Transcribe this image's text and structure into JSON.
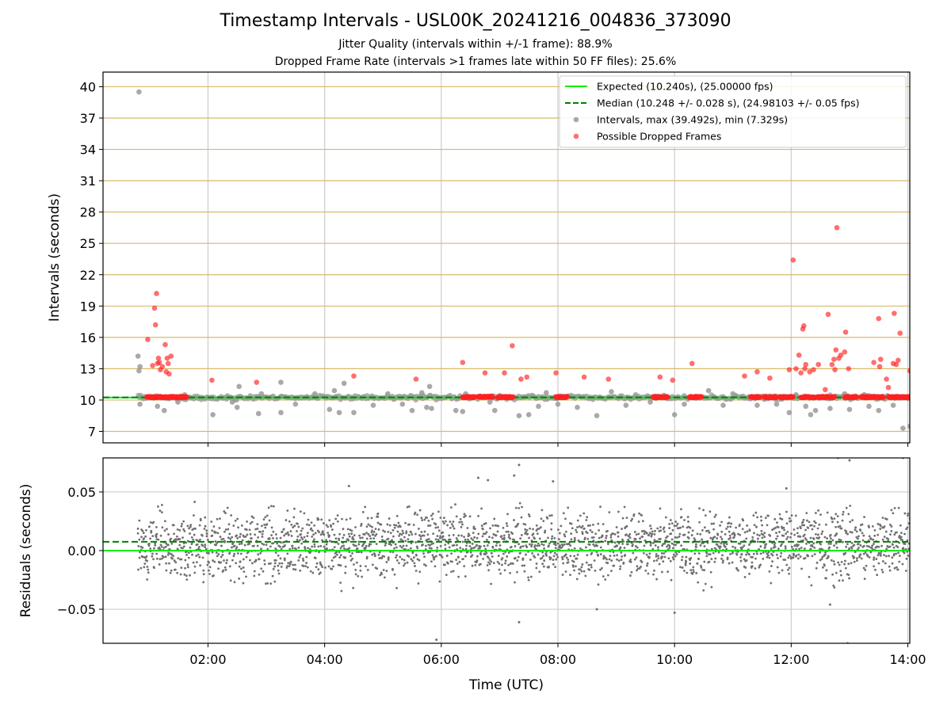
{
  "title": "Timestamp Intervals - USL00K_20241216_004836_373090",
  "subtitle_lines": [
    "Jitter Quality (intervals within +/-1 frame): 88.9%",
    "Dropped Frame Rate (intervals >1 frames late within 50 FF files): 25.6%"
  ],
  "colors": {
    "expected": "#00ee00",
    "median": "#008000",
    "intervals": "#9a9a9a",
    "dropped": "#ff2020",
    "residuals": "#707070",
    "hgrid_top": "#d9b96a",
    "grid": "#cccccc"
  },
  "chart_data": [
    {
      "type": "scatter",
      "panel": "intervals",
      "ylabel": "Intervals (seconds)",
      "xlim": [
        "00:12",
        "14:02"
      ],
      "ylim": [
        5.9,
        41.4
      ],
      "y_ticks": [
        7,
        10,
        13,
        16,
        19,
        22,
        25,
        28,
        31,
        34,
        37,
        40
      ],
      "x_ticks": [
        "02:00",
        "04:00",
        "06:00",
        "08:00",
        "10:00",
        "12:00",
        "14:00"
      ],
      "grid": true,
      "legend_position": "top-right",
      "legend": [
        "Expected (10.240s), (25.00000 fps)",
        "Median (10.248 +/- 0.028 s), (24.98103 +/- 0.05 fps)",
        "Intervals, max (39.492s), min (7.329s)",
        "Possible Dropped Frames"
      ],
      "expected_interval": 10.24,
      "median_interval": 10.248,
      "series": [
        {
          "name": "Intervals, max (39.492s), min (7.329s)",
          "points": [
            [
              "00:49",
              39.5
            ],
            [
              "00:48",
              14.2
            ],
            [
              "00:50",
              13.2
            ],
            [
              "00:49",
              12.8
            ],
            [
              "00:50",
              9.6
            ],
            [
              "01:08",
              9.4
            ],
            [
              "01:15",
              9.0
            ],
            [
              "01:29",
              9.8
            ],
            [
              "01:36",
              10.5
            ],
            [
              "02:05",
              8.6
            ],
            [
              "02:20",
              10.4
            ],
            [
              "02:25",
              9.8
            ],
            [
              "02:30",
              9.3
            ],
            [
              "02:32",
              11.3
            ],
            [
              "02:52",
              8.7
            ],
            [
              "02:55",
              10.6
            ],
            [
              "03:15",
              8.8
            ],
            [
              "03:15",
              11.7
            ],
            [
              "03:30",
              9.6
            ],
            [
              "03:50",
              10.6
            ],
            [
              "04:05",
              9.1
            ],
            [
              "04:10",
              10.9
            ],
            [
              "04:15",
              8.8
            ],
            [
              "04:20",
              11.6
            ],
            [
              "04:30",
              8.8
            ],
            [
              "04:50",
              9.5
            ],
            [
              "05:05",
              10.6
            ],
            [
              "05:20",
              9.6
            ],
            [
              "05:30",
              9.0
            ],
            [
              "05:40",
              10.7
            ],
            [
              "05:45",
              9.3
            ],
            [
              "05:48",
              11.3
            ],
            [
              "05:50",
              9.2
            ],
            [
              "06:15",
              9.0
            ],
            [
              "06:22",
              8.9
            ],
            [
              "06:25",
              10.6
            ],
            [
              "06:50",
              9.8
            ],
            [
              "06:55",
              9.0
            ],
            [
              "07:20",
              8.5
            ],
            [
              "07:30",
              8.6
            ],
            [
              "07:40",
              9.4
            ],
            [
              "07:48",
              10.7
            ],
            [
              "08:00",
              9.6
            ],
            [
              "08:20",
              9.3
            ],
            [
              "08:40",
              8.5
            ],
            [
              "08:55",
              10.8
            ],
            [
              "09:10",
              9.5
            ],
            [
              "09:20",
              10.5
            ],
            [
              "09:35",
              9.8
            ],
            [
              "09:50",
              10.4
            ],
            [
              "10:00",
              8.6
            ],
            [
              "10:10",
              9.6
            ],
            [
              "10:35",
              10.9
            ],
            [
              "10:50",
              9.5
            ],
            [
              "11:00",
              10.6
            ],
            [
              "11:25",
              9.5
            ],
            [
              "11:45",
              9.6
            ],
            [
              "11:58",
              8.8
            ],
            [
              "12:05",
              10.5
            ],
            [
              "12:15",
              9.4
            ],
            [
              "12:20",
              8.6
            ],
            [
              "12:25",
              9.0
            ],
            [
              "12:40",
              9.2
            ],
            [
              "12:55",
              10.6
            ],
            [
              "13:00",
              9.1
            ],
            [
              "13:15",
              10.5
            ],
            [
              "13:20",
              9.4
            ],
            [
              "13:30",
              9.0
            ],
            [
              "13:45",
              9.5
            ],
            [
              "13:55",
              7.3
            ],
            [
              "14:02",
              7.5
            ]
          ]
        },
        {
          "name": "Possible Dropped Frames",
          "points": [
            [
              "00:58",
              15.8
            ],
            [
              "01:03",
              13.3
            ],
            [
              "01:05",
              18.8
            ],
            [
              "01:06",
              17.2
            ],
            [
              "01:07",
              20.2
            ],
            [
              "01:08",
              13.5
            ],
            [
              "01:09",
              14.0
            ],
            [
              "01:10",
              13.6
            ],
            [
              "01:11",
              12.9
            ],
            [
              "01:13",
              13.2
            ],
            [
              "01:16",
              15.3
            ],
            [
              "01:17",
              12.7
            ],
            [
              "01:18",
              14.0
            ],
            [
              "01:19",
              13.5
            ],
            [
              "01:20",
              12.5
            ],
            [
              "01:22",
              14.2
            ],
            [
              "02:04",
              11.9
            ],
            [
              "02:50",
              11.7
            ],
            [
              "04:30",
              12.3
            ],
            [
              "05:34",
              12.0
            ],
            [
              "06:22",
              13.6
            ],
            [
              "06:45",
              12.6
            ],
            [
              "07:05",
              12.6
            ],
            [
              "07:13",
              15.2
            ],
            [
              "07:22",
              12.0
            ],
            [
              "07:28",
              12.2
            ],
            [
              "07:58",
              12.6
            ],
            [
              "08:27",
              12.2
            ],
            [
              "08:52",
              12.0
            ],
            [
              "09:45",
              12.2
            ],
            [
              "09:58",
              11.9
            ],
            [
              "10:18",
              13.5
            ],
            [
              "11:12",
              12.3
            ],
            [
              "11:25",
              12.7
            ],
            [
              "11:38",
              12.1
            ],
            [
              "11:58",
              12.9
            ],
            [
              "12:02",
              23.4
            ],
            [
              "12:05",
              13.0
            ],
            [
              "12:08",
              14.3
            ],
            [
              "12:10",
              12.6
            ],
            [
              "12:12",
              16.8
            ],
            [
              "12:13",
              17.1
            ],
            [
              "12:14",
              13.0
            ],
            [
              "12:15",
              13.4
            ],
            [
              "12:19",
              12.7
            ],
            [
              "12:23",
              12.9
            ],
            [
              "12:28",
              13.4
            ],
            [
              "12:35",
              11.0
            ],
            [
              "12:38",
              18.2
            ],
            [
              "12:42",
              13.4
            ],
            [
              "12:44",
              13.9
            ],
            [
              "12:45",
              12.9
            ],
            [
              "12:46",
              14.8
            ],
            [
              "12:47",
              26.5
            ],
            [
              "12:49",
              14.0
            ],
            [
              "12:51",
              14.3
            ],
            [
              "12:55",
              14.6
            ],
            [
              "12:56",
              16.5
            ],
            [
              "12:59",
              13.0
            ],
            [
              "13:25",
              13.6
            ],
            [
              "13:30",
              17.8
            ],
            [
              "13:31",
              13.2
            ],
            [
              "13:32",
              13.9
            ],
            [
              "13:38",
              12.0
            ],
            [
              "13:40",
              11.2
            ],
            [
              "13:45",
              13.5
            ],
            [
              "13:46",
              18.3
            ],
            [
              "13:48",
              13.4
            ],
            [
              "13:50",
              13.8
            ],
            [
              "13:52",
              16.4
            ],
            [
              "14:02",
              12.8
            ]
          ],
          "clusters": [
            [
              "00:57",
              "01:38",
              10.28
            ],
            [
              "06:22",
              "06:35",
              10.28
            ],
            [
              "06:38",
              "06:53",
              10.32
            ],
            [
              "06:58",
              "07:14",
              10.28
            ],
            [
              "07:58",
              "08:10",
              10.28
            ],
            [
              "09:38",
              "09:53",
              10.28
            ],
            [
              "10:15",
              "10:28",
              10.28
            ],
            [
              "11:18",
              "11:28",
              10.28
            ],
            [
              "11:32",
              "11:45",
              10.28
            ],
            [
              "11:48",
              "12:02",
              10.28
            ],
            [
              "12:10",
              "12:25",
              10.28
            ],
            [
              "12:27",
              "12:45",
              10.28
            ],
            [
              "12:55",
              "13:08",
              10.28
            ],
            [
              "13:12",
              "13:35",
              10.28
            ],
            [
              "13:40",
              "14:02",
              10.28
            ]
          ]
        }
      ]
    },
    {
      "type": "scatter",
      "panel": "residuals",
      "xlabel": "Time (UTC)",
      "ylabel": "Residuals (seconds)",
      "xlim": [
        "00:12",
        "14:02"
      ],
      "ylim": [
        -0.079,
        0.079
      ],
      "y_ticks": [
        "0.05",
        "0.00",
        "−0.05"
      ],
      "x_ticks": [
        "02:00",
        "04:00",
        "06:00",
        "08:00",
        "10:00",
        "12:00",
        "14:00"
      ],
      "grid": true,
      "expected_residual": 0.0,
      "median_residual": 0.0075,
      "residual_data_range": [
        "00:48",
        "14:02"
      ],
      "residual_spread": [
        -0.035,
        0.045
      ],
      "residual_outliers": [
        [
          "05:55",
          -0.076
        ],
        [
          "07:15",
          0.064
        ],
        [
          "07:20",
          0.073
        ],
        [
          "07:20",
          -0.061
        ],
        [
          "07:55",
          0.059
        ],
        [
          "08:40",
          -0.05
        ],
        [
          "10:00",
          -0.053
        ],
        [
          "11:55",
          0.053
        ],
        [
          "12:40",
          -0.046
        ],
        [
          "12:48",
          0.079
        ],
        [
          "12:58",
          -0.079
        ],
        [
          "13:00",
          0.077
        ],
        [
          "13:55",
          0.079
        ],
        [
          "04:25",
          0.055
        ],
        [
          "06:38",
          0.062
        ],
        [
          "06:48",
          0.06
        ]
      ]
    }
  ]
}
